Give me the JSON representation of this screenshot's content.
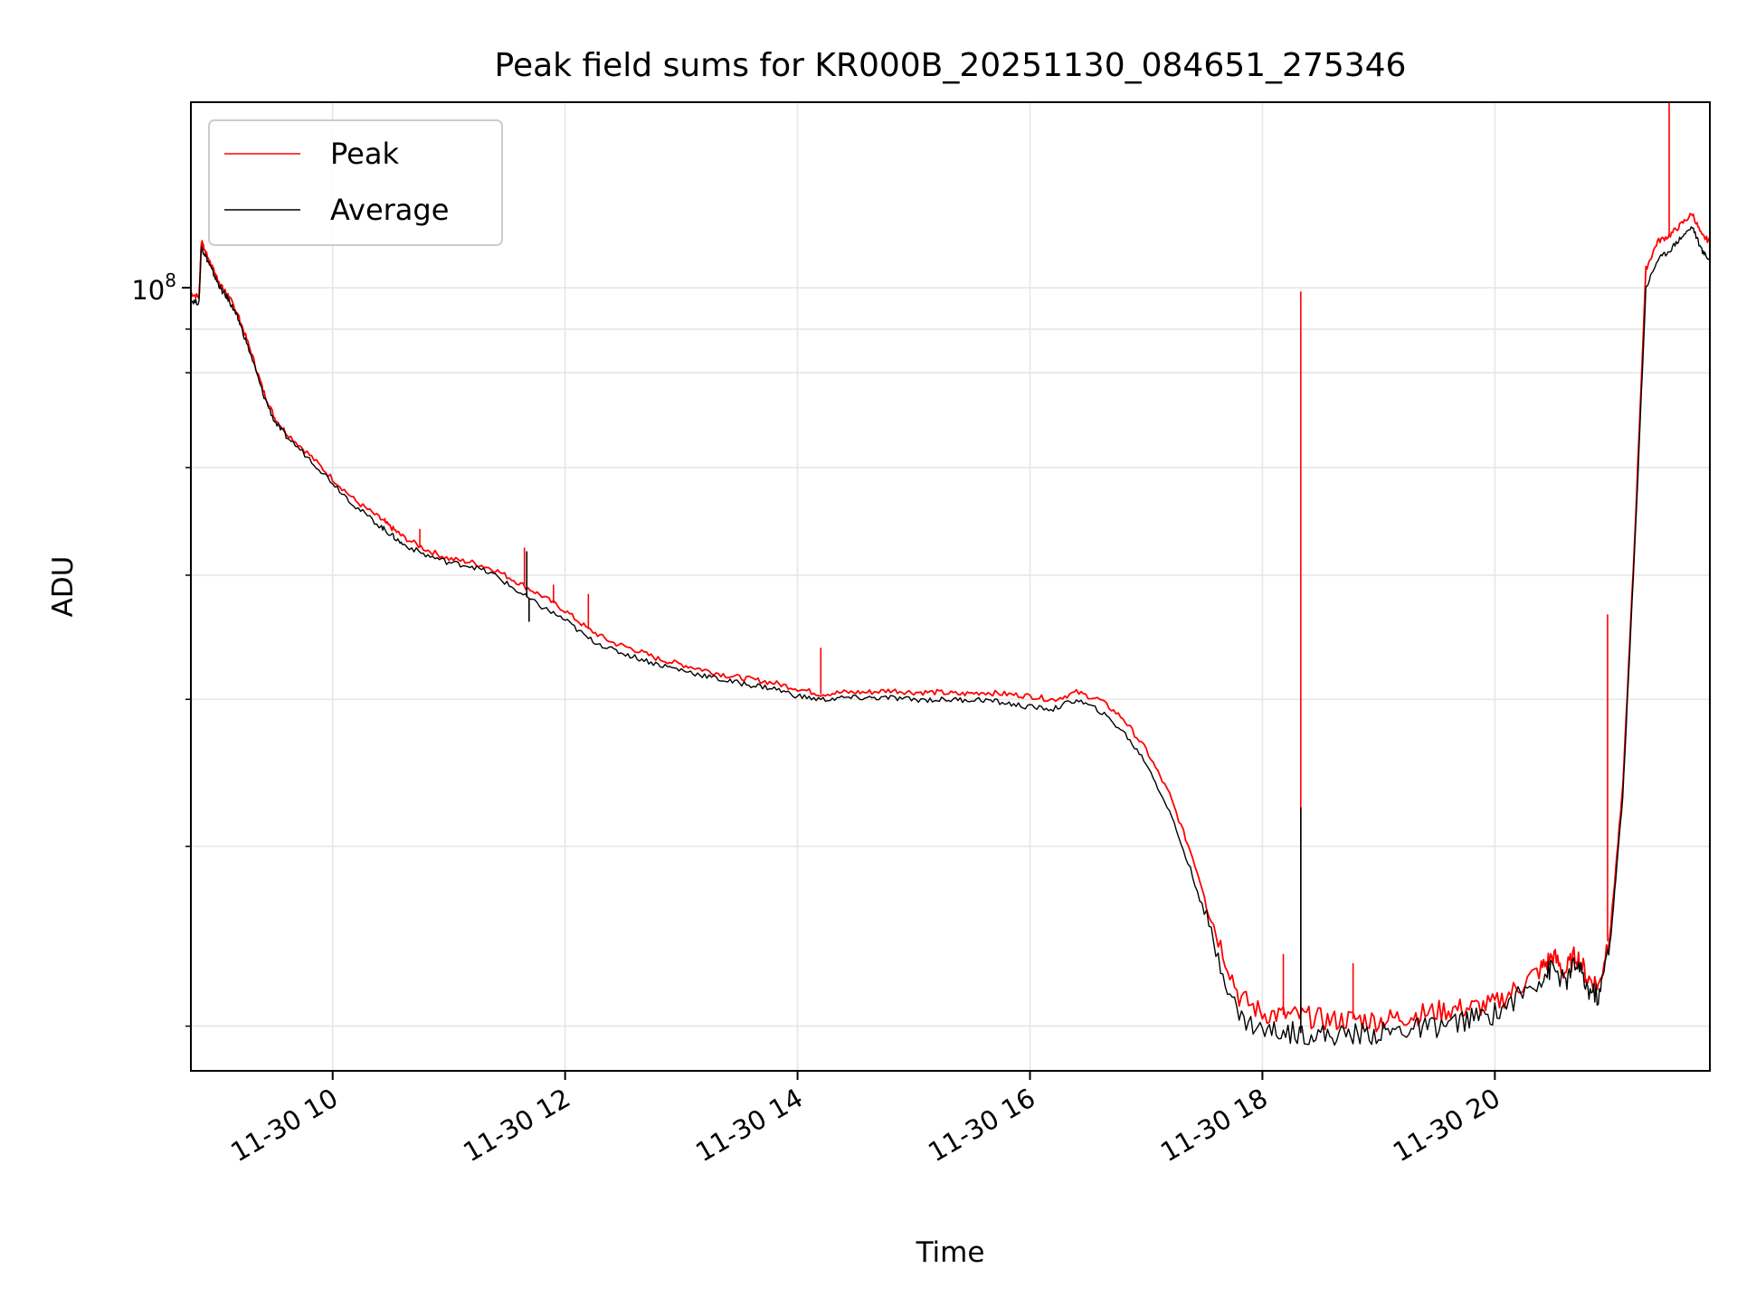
{
  "chart_data": {
    "type": "line",
    "title": "Peak field sums for KR000B_20251130_084651_275346",
    "xlabel": "Time",
    "ylabel": "ADU",
    "yscale": "log",
    "grid": true,
    "legend_position": "upper-left",
    "xlim": [
      8.78,
      21.85
    ],
    "ylim_log10": [
      7.578,
      8.1
    ],
    "x_ticks": [
      {
        "value": 10,
        "label": "11-30 10"
      },
      {
        "value": 12,
        "label": "11-30 12"
      },
      {
        "value": 14,
        "label": "11-30 14"
      },
      {
        "value": 16,
        "label": "11-30 16"
      },
      {
        "value": 18,
        "label": "11-30 18"
      },
      {
        "value": 20,
        "label": "11-30 20"
      }
    ],
    "y_major_tick": {
      "value": 8,
      "label_base": "10",
      "label_exp": "8"
    },
    "y_minor_log10": [
      7.6021,
      7.699,
      7.7782,
      7.8451,
      7.9031,
      7.9542,
      7.9777
    ],
    "series": [
      {
        "name": "Peak",
        "color": "#ff0000",
        "x": [
          8.78,
          8.85,
          8.87,
          8.9,
          8.95,
          9.0,
          9.05,
          9.1,
          9.15,
          9.2,
          9.3,
          9.4,
          9.5,
          9.6,
          9.8,
          10.0,
          10.2,
          10.4,
          10.5,
          10.6,
          10.8,
          11.0,
          11.2,
          11.4,
          11.6,
          11.8,
          12.0,
          12.2,
          12.4,
          12.6,
          12.8,
          13.0,
          13.2,
          13.4,
          13.6,
          13.8,
          14.0,
          14.2,
          14.4,
          14.6,
          14.8,
          15.0,
          15.2,
          15.4,
          15.6,
          15.8,
          16.0,
          16.2,
          16.4,
          16.6,
          16.8,
          17.0,
          17.2,
          17.4,
          17.6,
          17.8,
          18.0,
          18.2,
          18.4,
          18.6,
          18.8,
          19.0,
          19.2,
          19.4,
          19.6,
          19.8,
          20.0,
          20.2,
          20.4,
          20.5,
          20.6,
          20.7,
          20.8,
          20.9,
          21.0,
          21.1,
          21.2,
          21.3,
          21.4,
          21.5,
          21.6,
          21.7,
          21.78,
          21.85
        ],
        "log10_values": [
          7.997,
          7.995,
          8.025,
          8.02,
          8.013,
          8.006,
          8.0,
          7.996,
          7.99,
          7.983,
          7.965,
          7.945,
          7.93,
          7.922,
          7.91,
          7.897,
          7.885,
          7.876,
          7.871,
          7.866,
          7.859,
          7.854,
          7.852,
          7.848,
          7.841,
          7.834,
          7.826,
          7.816,
          7.809,
          7.805,
          7.8,
          7.797,
          7.794,
          7.791,
          7.789,
          7.787,
          7.784,
          7.781,
          7.782,
          7.782,
          7.783,
          7.782,
          7.782,
          7.781,
          7.782,
          7.781,
          7.78,
          7.778,
          7.782,
          7.778,
          7.768,
          7.751,
          7.727,
          7.693,
          7.653,
          7.618,
          7.609,
          7.608,
          7.607,
          7.605,
          7.606,
          7.605,
          7.607,
          7.609,
          7.611,
          7.612,
          7.614,
          7.623,
          7.633,
          7.64,
          7.631,
          7.641,
          7.628,
          7.624,
          7.658,
          7.73,
          7.86,
          8.01,
          8.025,
          8.028,
          8.034,
          8.04,
          8.028,
          8.025
        ],
        "spikes": [
          {
            "x": 10.45,
            "log10": 7.876
          },
          {
            "x": 10.75,
            "log10": 7.87
          },
          {
            "x": 11.65,
            "log10": 7.86
          },
          {
            "x": 11.9,
            "log10": 7.84
          },
          {
            "x": 12.2,
            "log10": 7.835
          },
          {
            "x": 14.2,
            "log10": 7.806
          },
          {
            "x": 18.18,
            "log10": 7.641
          },
          {
            "x": 18.33,
            "log10": 7.998
          },
          {
            "x": 18.78,
            "log10": 7.636
          },
          {
            "x": 20.97,
            "log10": 7.824
          },
          {
            "x": 21.5,
            "log10": 8.1
          }
        ]
      },
      {
        "name": "Average",
        "color": "#000000",
        "x": [
          8.78,
          8.85,
          8.87,
          8.9,
          8.95,
          9.0,
          9.05,
          9.1,
          9.15,
          9.2,
          9.3,
          9.4,
          9.5,
          9.6,
          9.8,
          10.0,
          10.2,
          10.4,
          10.5,
          10.6,
          10.8,
          11.0,
          11.2,
          11.4,
          11.6,
          11.8,
          12.0,
          12.2,
          12.4,
          12.6,
          12.8,
          13.0,
          13.2,
          13.4,
          13.6,
          13.8,
          14.0,
          14.2,
          14.4,
          14.6,
          14.8,
          15.0,
          15.2,
          15.4,
          15.6,
          15.8,
          16.0,
          16.2,
          16.4,
          16.6,
          16.8,
          17.0,
          17.2,
          17.4,
          17.6,
          17.8,
          18.0,
          18.2,
          18.4,
          18.6,
          18.8,
          19.0,
          19.2,
          19.4,
          19.6,
          19.8,
          20.0,
          20.2,
          20.4,
          20.5,
          20.6,
          20.7,
          20.8,
          20.9,
          21.0,
          21.1,
          21.2,
          21.3,
          21.4,
          21.5,
          21.6,
          21.7,
          21.78,
          21.85
        ],
        "log10_values": [
          7.993,
          7.992,
          8.022,
          8.018,
          8.011,
          8.004,
          7.998,
          7.994,
          7.988,
          7.981,
          7.963,
          7.943,
          7.928,
          7.92,
          7.908,
          7.895,
          7.882,
          7.872,
          7.867,
          7.862,
          7.856,
          7.852,
          7.85,
          7.845,
          7.836,
          7.828,
          7.821,
          7.811,
          7.805,
          7.801,
          7.797,
          7.794,
          7.791,
          7.788,
          7.786,
          7.784,
          7.78,
          7.778,
          7.779,
          7.779,
          7.779,
          7.778,
          7.778,
          7.778,
          7.778,
          7.776,
          7.774,
          7.773,
          7.778,
          7.772,
          7.761,
          7.744,
          7.718,
          7.683,
          7.643,
          7.607,
          7.6,
          7.599,
          7.598,
          7.597,
          7.598,
          7.598,
          7.6,
          7.601,
          7.603,
          7.606,
          7.609,
          7.618,
          7.628,
          7.634,
          7.625,
          7.636,
          7.622,
          7.618,
          7.652,
          7.725,
          7.855,
          8.0,
          8.015,
          8.02,
          8.027,
          8.033,
          8.02,
          8.015
        ],
        "spikes": [
          {
            "x": 11.67,
            "log10": 7.858
          },
          {
            "x": 11.69,
            "log10": 7.82
          },
          {
            "x": 18.33,
            "log10": 7.72
          }
        ]
      }
    ],
    "legend": [
      {
        "label": "Peak",
        "color": "#ff0000"
      },
      {
        "label": "Average",
        "color": "#000000"
      }
    ]
  }
}
